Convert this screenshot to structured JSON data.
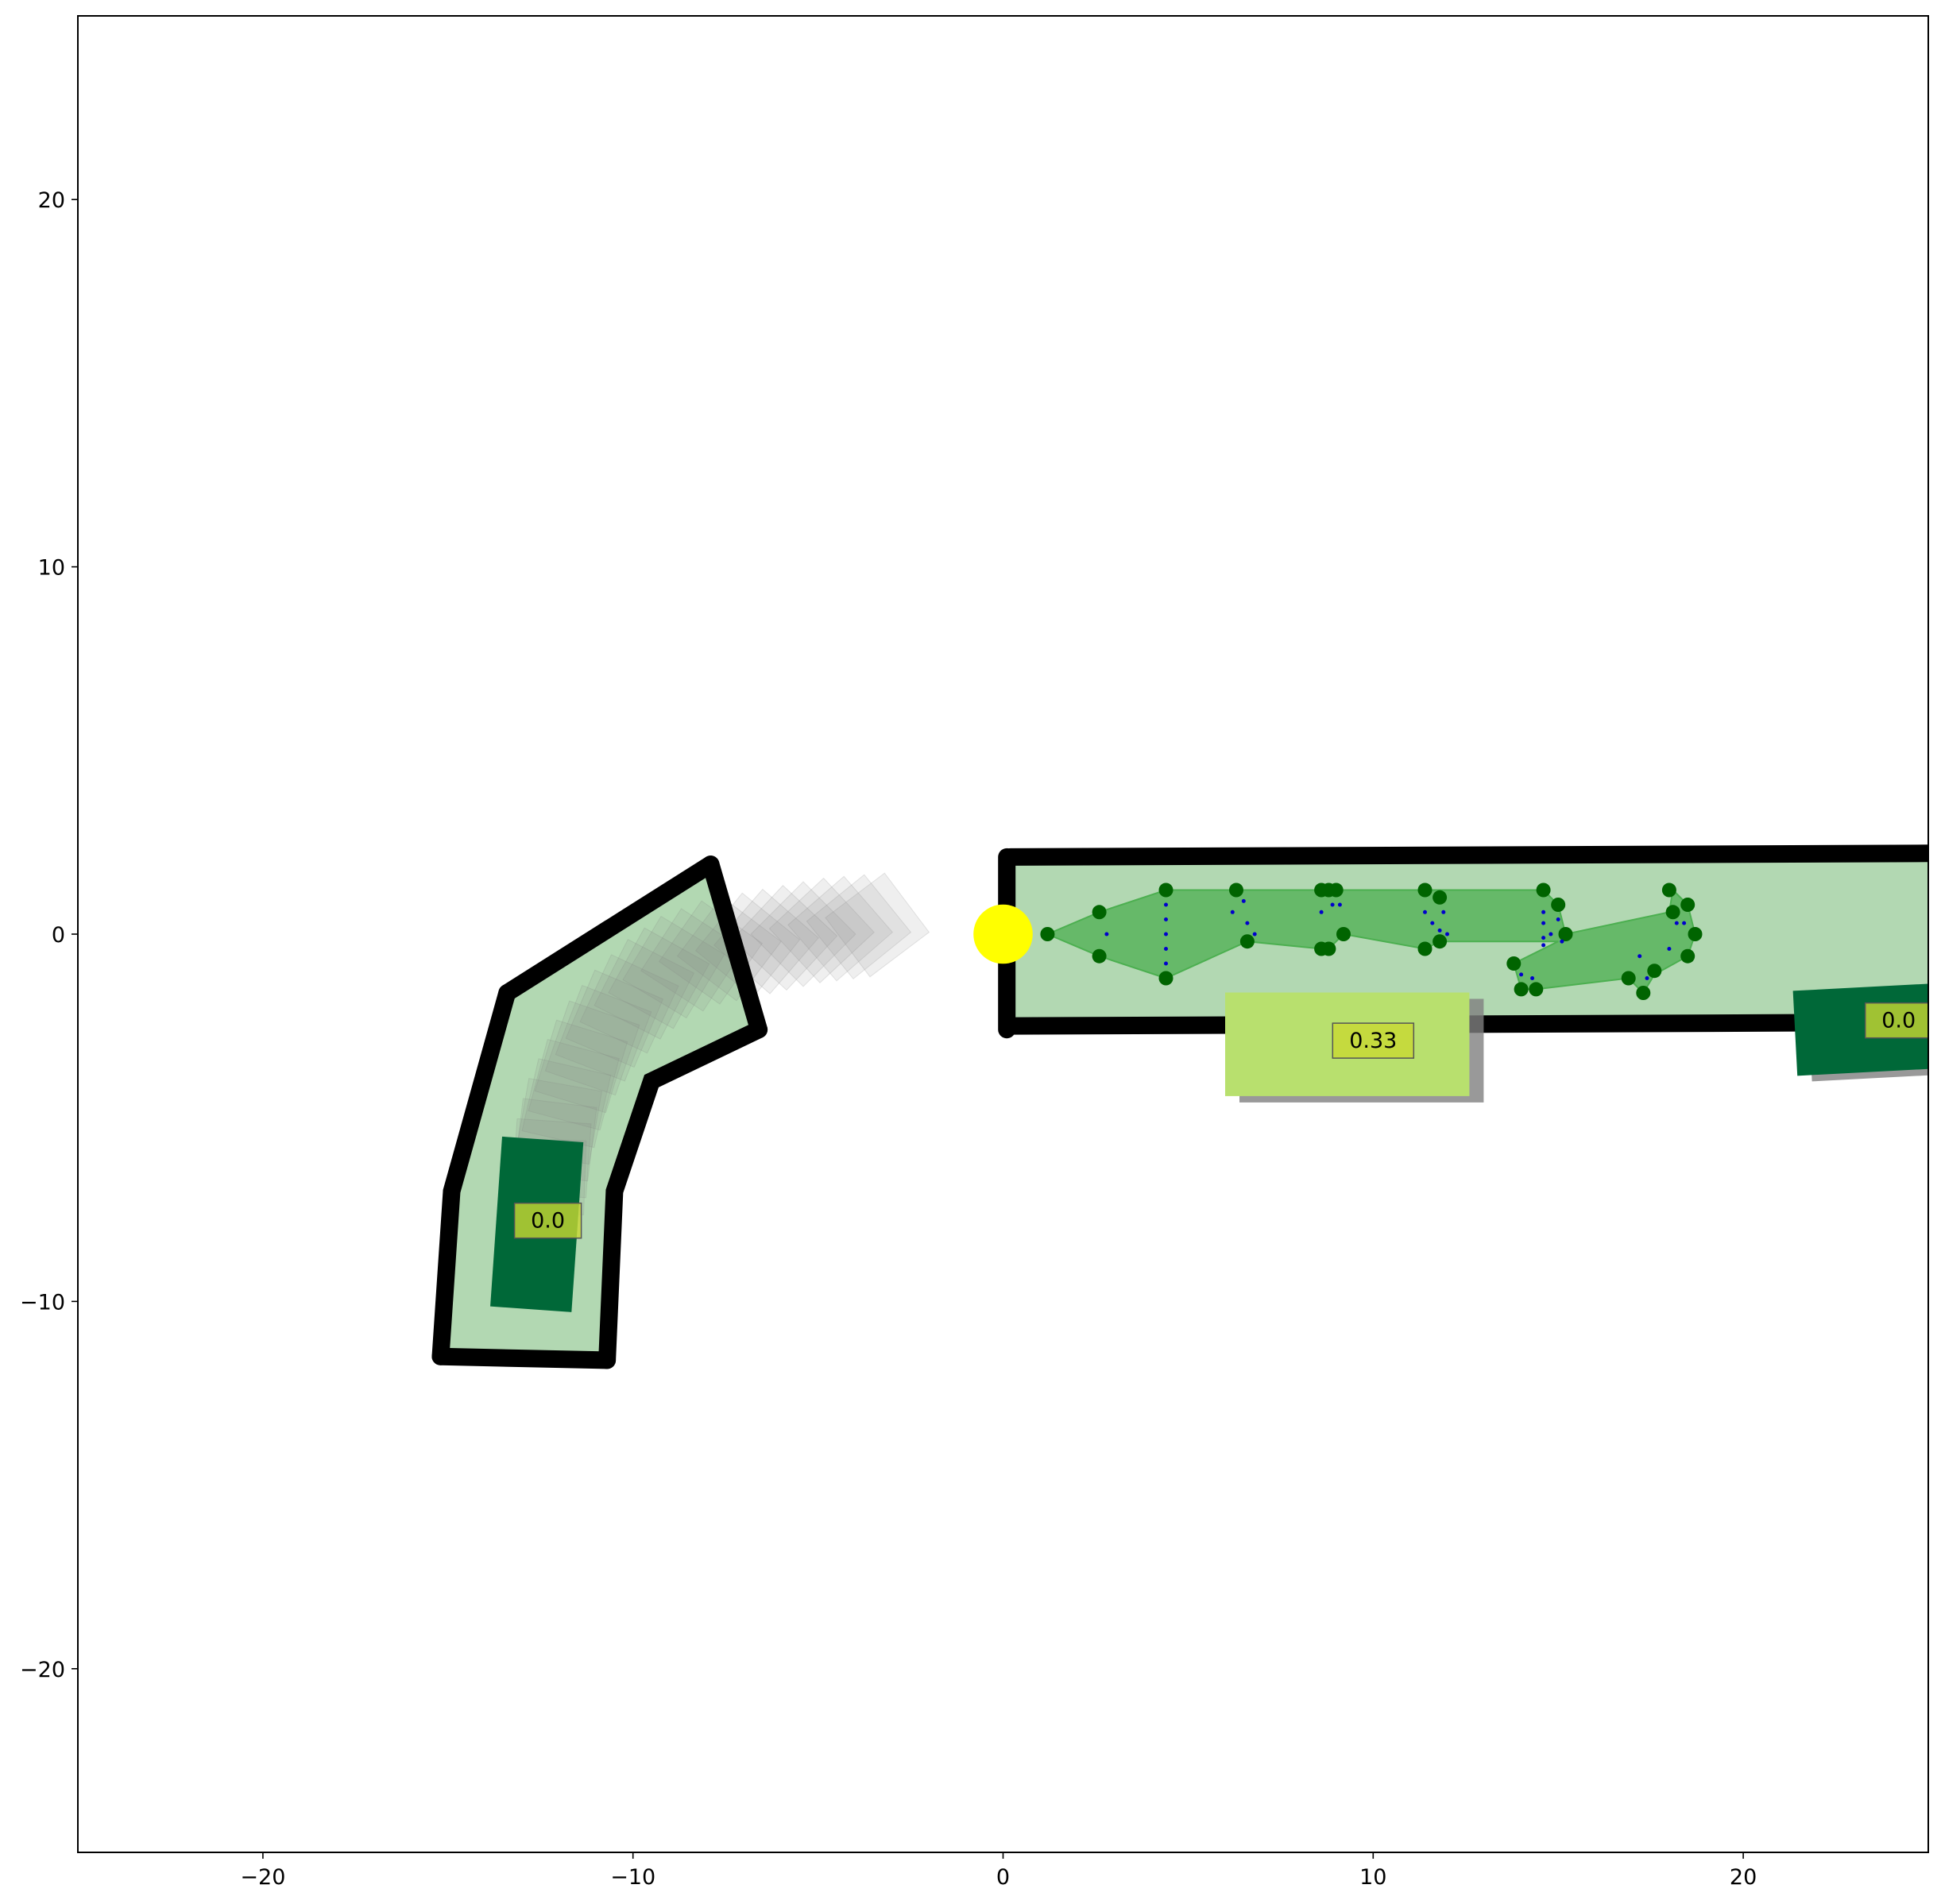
{
  "chart_data": {
    "type": "scatter",
    "title": "",
    "xlabel": "",
    "ylabel": "",
    "xlim": [
      -25,
      25
    ],
    "ylim": [
      -25,
      25
    ],
    "grid": false,
    "xticks": [
      -20,
      -10,
      0,
      10,
      20
    ],
    "yticks": [
      -20,
      -10,
      0,
      10,
      20
    ],
    "xtick_labels": [
      "−20",
      "−10",
      "0",
      "10",
      "20"
    ],
    "ytick_labels": [
      "−20",
      "−10",
      "0",
      "10",
      "20"
    ],
    "colors": {
      "lane_fill": "#b2d8b2",
      "lane_border": "#000000",
      "vehicle_dark": "#006838",
      "vehicle_light": "#b8e06e",
      "shadow": "#808080",
      "waypoint_fill": "#4caf50",
      "waypoint_marker": "#006400",
      "trajectory_dots": "#0000cc",
      "ego_marker": "#ffff00",
      "label_box": "#c8d832"
    },
    "lanes": [
      {
        "name": "curved-lane",
        "polygon": [
          [
            -13.4,
            -1.6
          ],
          [
            -7.9,
            1.9
          ],
          [
            -6.6,
            -2.6
          ],
          [
            -9.5,
            -4
          ],
          [
            -10.5,
            -7
          ],
          [
            -10.7,
            -11.6
          ],
          [
            -15.2,
            -11.5
          ],
          [
            -14.9,
            -7
          ],
          [
            -13.4,
            -1.6
          ]
        ],
        "borders": [
          [
            [
              -13.4,
              -1.6
            ],
            [
              -7.9,
              1.9
            ]
          ],
          [
            [
              -7.9,
              1.9
            ],
            [
              -6.6,
              -2.6
            ]
          ],
          [
            [
              -6.6,
              -2.6
            ],
            [
              -9.5,
              -4
            ],
            [
              -10.5,
              -7
            ],
            [
              -10.7,
              -11.6
            ]
          ],
          [
            [
              -10.7,
              -11.6
            ],
            [
              -15.2,
              -11.5
            ]
          ],
          [
            [
              -15.2,
              -11.5
            ],
            [
              -14.9,
              -7
            ],
            [
              -13.4,
              -1.6
            ]
          ]
        ]
      },
      {
        "name": "straight-lane",
        "polygon": [
          [
            0.2,
            2.1
          ],
          [
            25,
            2.2
          ],
          [
            25,
            -2.4
          ],
          [
            0.2,
            -2.6
          ]
        ],
        "borders": [
          [
            [
              0.2,
              2.1
            ],
            [
              25,
              2.2
            ]
          ],
          [
            [
              0.1,
              2.1
            ],
            [
              0.1,
              -2.6
            ]
          ],
          [
            [
              0.2,
              -2.5
            ],
            [
              25,
              -2.4
            ]
          ]
        ]
      }
    ],
    "shadow_trail": [
      [
        -7.9,
        -0.5,
        55
      ],
      [
        -7.4,
        -0.4,
        53
      ],
      [
        -6.9,
        -0.3,
        51
      ],
      [
        -6.4,
        -0.2,
        49
      ],
      [
        -5.9,
        -0.1,
        47
      ],
      [
        -5.4,
        0.0,
        45
      ],
      [
        -4.9,
        0.1,
        43
      ],
      [
        -4.4,
        0.15,
        41
      ],
      [
        -3.9,
        0.2,
        39
      ],
      [
        -3.4,
        0.25,
        37
      ],
      [
        -8.4,
        -0.7,
        57
      ],
      [
        -8.9,
        -0.9,
        59
      ],
      [
        -9.3,
        -1.2,
        61
      ],
      [
        -9.7,
        -1.5,
        63
      ],
      [
        -10.1,
        -1.9,
        65
      ],
      [
        -10.5,
        -2.3,
        67
      ],
      [
        -10.8,
        -2.7,
        69
      ],
      [
        -11.1,
        -3.1,
        71
      ],
      [
        -11.4,
        -3.6,
        73
      ],
      [
        -11.6,
        -4.1,
        75
      ],
      [
        -11.8,
        -4.6,
        77
      ],
      [
        -12.0,
        -5.1,
        80
      ],
      [
        -12.1,
        -5.6,
        83
      ],
      [
        -12.2,
        -6.1,
        86
      ],
      [
        -12.3,
        -6.6,
        88
      ]
    ],
    "vehicles": [
      {
        "name": "vehicle-curved-lane",
        "cx": -12.6,
        "cy": -7.9,
        "w": 2.2,
        "h": 4.6,
        "angle": -4,
        "color": "#006838",
        "score": "0.0",
        "shadow": false
      },
      {
        "name": "vehicle-straight-lane-mid",
        "cx": 9.3,
        "cy": -3.0,
        "w": 6.6,
        "h": 2.8,
        "angle": 0,
        "color": "#b8e06e",
        "score": "0.33",
        "shadow": true
      },
      {
        "name": "vehicle-straight-lane-right",
        "cx": 23.3,
        "cy": -2.6,
        "w": 3.8,
        "h": 2.3,
        "angle": 3,
        "color": "#006838",
        "score": "0.0",
        "shadow": true
      }
    ],
    "waypoint_region": [
      [
        1.2,
        0.0
      ],
      [
        2.6,
        0.6
      ],
      [
        4.4,
        1.2
      ],
      [
        6.3,
        1.2
      ],
      [
        8.8,
        1.2
      ],
      [
        11.4,
        1.2
      ],
      [
        14.6,
        1.2
      ],
      [
        15.0,
        0.8
      ],
      [
        15.2,
        0.0
      ],
      [
        18.0,
        0.6
      ],
      [
        18.1,
        1.2
      ],
      [
        18.5,
        0.8
      ],
      [
        18.7,
        0.0
      ],
      [
        18.5,
        -0.6
      ],
      [
        17.6,
        -1.1
      ],
      [
        17.3,
        -1.6
      ],
      [
        16.9,
        -1.2
      ],
      [
        14.4,
        -1.5
      ],
      [
        14.0,
        -1.5
      ],
      [
        13.8,
        -0.8
      ],
      [
        15.0,
        -0.2
      ],
      [
        11.8,
        -0.2
      ],
      [
        11.4,
        -0.4
      ],
      [
        9.2,
        0.0
      ],
      [
        8.8,
        -0.4
      ],
      [
        8.6,
        -0.4
      ],
      [
        6.6,
        -0.2
      ],
      [
        4.4,
        -1.2
      ],
      [
        2.6,
        -0.6
      ]
    ],
    "waypoints": [
      [
        1.2,
        0.0
      ],
      [
        2.6,
        0.6
      ],
      [
        2.6,
        -0.6
      ],
      [
        4.4,
        1.2
      ],
      [
        4.4,
        -1.2
      ],
      [
        6.3,
        1.2
      ],
      [
        6.6,
        -0.2
      ],
      [
        8.6,
        1.2
      ],
      [
        8.8,
        1.2
      ],
      [
        9.0,
        1.2
      ],
      [
        8.6,
        -0.4
      ],
      [
        8.8,
        -0.4
      ],
      [
        9.2,
        0.0
      ],
      [
        11.4,
        1.2
      ],
      [
        11.8,
        1.0
      ],
      [
        11.4,
        -0.4
      ],
      [
        11.8,
        -0.2
      ],
      [
        14.6,
        1.2
      ],
      [
        15.0,
        0.8
      ],
      [
        15.2,
        0.0
      ],
      [
        13.8,
        -0.8
      ],
      [
        14.0,
        -1.5
      ],
      [
        14.4,
        -1.5
      ],
      [
        18.0,
        1.2
      ],
      [
        18.5,
        0.8
      ],
      [
        18.1,
        0.6
      ],
      [
        18.7,
        0.0
      ],
      [
        18.5,
        -0.6
      ],
      [
        17.6,
        -1.0
      ],
      [
        17.3,
        -1.6
      ],
      [
        16.9,
        -1.2
      ]
    ],
    "trajectory_dots": [
      [
        2.8,
        0.0
      ],
      [
        4.4,
        0.8
      ],
      [
        4.4,
        0.4
      ],
      [
        4.4,
        0.0
      ],
      [
        4.4,
        -0.4
      ],
      [
        4.4,
        -0.8
      ],
      [
        6.2,
        0.6
      ],
      [
        6.5,
        0.9
      ],
      [
        6.6,
        0.3
      ],
      [
        6.8,
        0.0
      ],
      [
        8.6,
        0.6
      ],
      [
        8.9,
        0.8
      ],
      [
        9.1,
        0.8
      ],
      [
        11.4,
        0.6
      ],
      [
        11.6,
        0.3
      ],
      [
        11.9,
        0.6
      ],
      [
        11.8,
        0.1
      ],
      [
        12.0,
        0.0
      ],
      [
        14.6,
        0.6
      ],
      [
        14.6,
        0.3
      ],
      [
        14.6,
        -0.1
      ],
      [
        14.6,
        -0.3
      ],
      [
        14.8,
        0.0
      ],
      [
        15.0,
        0.4
      ],
      [
        15.1,
        -0.2
      ],
      [
        14.0,
        -1.1
      ],
      [
        14.3,
        -1.2
      ],
      [
        17.2,
        -0.6
      ],
      [
        17.4,
        -1.2
      ],
      [
        18.0,
        -0.4
      ],
      [
        18.2,
        0.3
      ],
      [
        18.4,
        0.3
      ]
    ],
    "ego": {
      "cx": 0.0,
      "cy": 0.0,
      "r": 0.8,
      "color": "#ffff00"
    }
  }
}
